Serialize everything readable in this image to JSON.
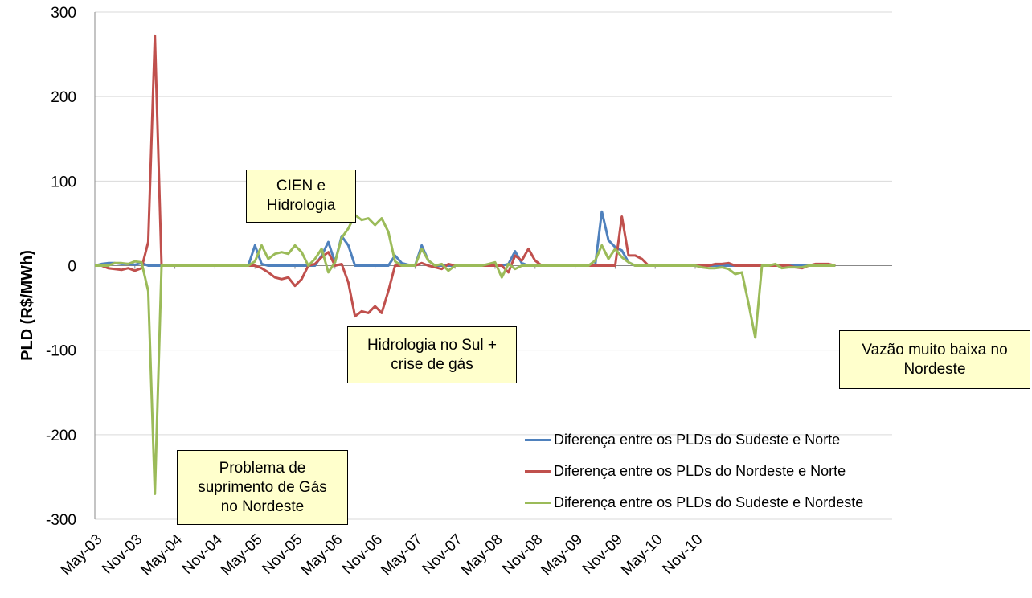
{
  "chart_data": {
    "type": "line",
    "title": "",
    "xlabel": "",
    "ylabel": "PLD (R$/MWh)",
    "ylim": [
      -300,
      300
    ],
    "yticks": [
      300,
      200,
      100,
      0,
      -100,
      -200,
      -300
    ],
    "xtick_labels": [
      "May-03",
      "Nov-03",
      "May-04",
      "Nov-04",
      "May-05",
      "Nov-05",
      "May-06",
      "Nov-06",
      "May-07",
      "Nov-07",
      "May-08",
      "Nov-08",
      "May-09",
      "Nov-09",
      "May-10",
      "Nov-10"
    ],
    "x_start_month": "2003-05",
    "grid": true,
    "legend_position": "bottom-right",
    "series": [
      {
        "name": "Diferença entre os PLDs do Sudeste e Norte",
        "color": "#4f81bd",
        "values": [
          0,
          2,
          3,
          3,
          2,
          2,
          1,
          3,
          0,
          0,
          0,
          0,
          0,
          0,
          0,
          0,
          0,
          0,
          0,
          0,
          0,
          0,
          0,
          0,
          24,
          2,
          0,
          0,
          0,
          0,
          0,
          0,
          0,
          0,
          12,
          28,
          4,
          35,
          24,
          0,
          0,
          0,
          0,
          0,
          0,
          12,
          3,
          1,
          0,
          24,
          6,
          0,
          0,
          0,
          0,
          0,
          0,
          0,
          0,
          0,
          0,
          0,
          2,
          17,
          3,
          0,
          0,
          0,
          0,
          0,
          0,
          0,
          0,
          0,
          0,
          0,
          64,
          30,
          22,
          18,
          4,
          0,
          0,
          0,
          0,
          0,
          0,
          0,
          0,
          0,
          0,
          0,
          0,
          0,
          0,
          0,
          0,
          0,
          0,
          0,
          0,
          0,
          0,
          0,
          0,
          0,
          0,
          0,
          0,
          0,
          0,
          0
        ]
      },
      {
        "name": "Diferença entre os PLDs do Nordeste e Norte",
        "color": "#c0504d",
        "values": [
          0,
          0,
          -3,
          -4,
          -5,
          -3,
          -6,
          -3,
          28,
          272,
          0,
          0,
          0,
          0,
          0,
          0,
          0,
          0,
          0,
          0,
          0,
          0,
          0,
          0,
          0,
          -3,
          -8,
          -14,
          -16,
          -14,
          -24,
          -16,
          0,
          2,
          10,
          16,
          0,
          2,
          -20,
          -60,
          -54,
          -56,
          -48,
          -56,
          -30,
          0,
          0,
          0,
          0,
          3,
          0,
          -2,
          -4,
          2,
          0,
          0,
          0,
          0,
          0,
          0,
          0,
          0,
          -8,
          12,
          6,
          20,
          6,
          0,
          0,
          0,
          0,
          0,
          0,
          0,
          0,
          0,
          0,
          0,
          0,
          58,
          12,
          12,
          8,
          0,
          0,
          0,
          0,
          0,
          0,
          0,
          0,
          0,
          0,
          2,
          2,
          3,
          0,
          0,
          0,
          0,
          0,
          0,
          0,
          0,
          0,
          -2,
          -3,
          0,
          2,
          2,
          2,
          0
        ]
      },
      {
        "name": "Diferença entre os PLDs do Sudeste e Nordeste",
        "color": "#9bbb59",
        "values": [
          0,
          0,
          0,
          3,
          3,
          2,
          5,
          4,
          -30,
          -270,
          0,
          0,
          0,
          0,
          0,
          0,
          0,
          0,
          0,
          0,
          0,
          0,
          0,
          0,
          5,
          24,
          8,
          14,
          16,
          14,
          24,
          16,
          0,
          8,
          20,
          -8,
          4,
          33,
          44,
          60,
          54,
          56,
          48,
          56,
          40,
          5,
          0,
          0,
          0,
          20,
          6,
          0,
          2,
          -6,
          0,
          0,
          0,
          0,
          0,
          2,
          4,
          -14,
          2,
          -4,
          0,
          0,
          0,
          0,
          0,
          0,
          0,
          0,
          0,
          0,
          0,
          6,
          24,
          8,
          20,
          10,
          4,
          0,
          0,
          0,
          0,
          0,
          0,
          0,
          0,
          0,
          0,
          -2,
          -3,
          -3,
          -2,
          -4,
          -10,
          -8,
          -45,
          -85,
          0,
          0,
          2,
          -3,
          -2,
          -2,
          -2,
          0,
          0,
          0,
          0,
          0
        ]
      }
    ],
    "annotations": [
      {
        "text": "CIEN e\nHidrologia"
      },
      {
        "text": "Hidrologia no Sul +\ncrise de gás"
      },
      {
        "text": "Problema de\nsuprimento de Gás\nno Nordeste"
      },
      {
        "text": "Vazão muito baixa no\nNordeste"
      }
    ]
  }
}
